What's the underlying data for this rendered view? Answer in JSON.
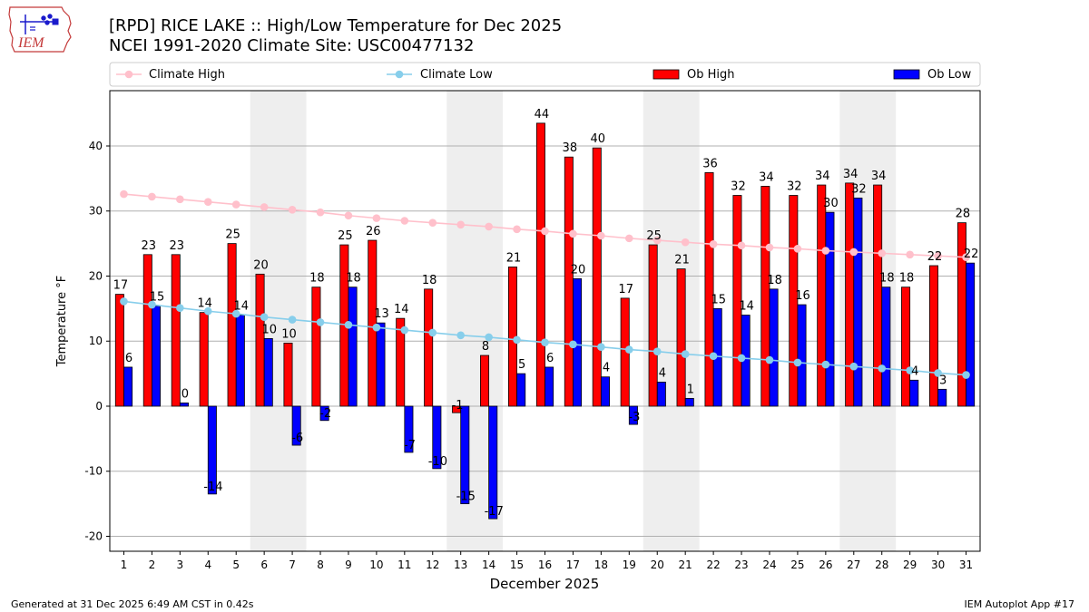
{
  "header": {
    "title_line1": "[RPD] RICE LAKE :: High/Low Temperature for Dec 2025",
    "title_line2": "NCEI 1991-2020 Climate Site: USC00477132",
    "logo_text": "IEM"
  },
  "footer": {
    "left": "Generated at 31 Dec 2025 6:49 AM CST in 0.42s",
    "right": "IEM Autoplot App #17"
  },
  "colors": {
    "ob_high": "#ff0000",
    "ob_low": "#0000ff",
    "climate_high": "#ffc0cb",
    "climate_low": "#87ceeb",
    "weekend_shade": "#eeeeee",
    "grid": "#b0b0b0"
  },
  "chart_data": {
    "type": "bar",
    "xlabel": "December 2025",
    "ylabel": "Temperature °F",
    "ylim": [
      -22.3,
      48.5
    ],
    "yticks": [
      -20,
      -10,
      0,
      10,
      20,
      30,
      40
    ],
    "grid": "horizontal",
    "legend_position": "top",
    "categories": [
      "1",
      "2",
      "3",
      "4",
      "5",
      "6",
      "7",
      "8",
      "9",
      "10",
      "11",
      "12",
      "13",
      "14",
      "15",
      "16",
      "17",
      "18",
      "19",
      "20",
      "21",
      "22",
      "23",
      "24",
      "25",
      "26",
      "27",
      "28",
      "29",
      "30",
      "31"
    ],
    "shaded_days": [
      [
        6,
        7
      ],
      [
        13,
        14
      ],
      [
        20,
        21
      ],
      [
        27,
        28
      ]
    ],
    "series": [
      {
        "name": "Ob High",
        "kind": "bar",
        "values": [
          17,
          23,
          23,
          14,
          25,
          20,
          10,
          18,
          25,
          26,
          14,
          18,
          -1,
          8,
          21,
          44,
          38,
          40,
          17,
          25,
          21,
          36,
          32,
          34,
          32,
          34,
          34,
          34,
          18,
          22,
          28
        ],
        "heights": [
          17.2,
          23.3,
          23.3,
          14.4,
          25.0,
          20.3,
          9.7,
          18.3,
          24.8,
          25.5,
          13.5,
          18.0,
          -1.0,
          7.8,
          21.4,
          43.5,
          38.3,
          39.7,
          16.6,
          24.8,
          21.1,
          35.9,
          32.4,
          33.8,
          32.4,
          34.0,
          34.3,
          34.0,
          18.3,
          21.6,
          28.2
        ],
        "labels": [
          "17",
          "23",
          "23",
          "14",
          "25",
          "20",
          "10",
          "18",
          "25",
          "26",
          "14",
          "18",
          "-1",
          "8",
          "21",
          "44",
          "38",
          "40",
          "17",
          "25",
          "21",
          "36",
          "32",
          "34",
          "32",
          "34",
          "34",
          "34",
          "18",
          "22",
          "28"
        ]
      },
      {
        "name": "Ob Low",
        "kind": "bar",
        "values": [
          6,
          15,
          0,
          -14,
          14,
          10,
          -6,
          -2,
          18,
          13,
          -7,
          -10,
          -15,
          -17,
          5,
          6,
          20,
          4,
          -3,
          4,
          1,
          15,
          14,
          18,
          16,
          30,
          32,
          18,
          4,
          3,
          22
        ],
        "heights": [
          6.0,
          15.4,
          0.5,
          -13.5,
          14.0,
          10.4,
          -6.0,
          -2.2,
          18.3,
          12.8,
          -7.1,
          -9.6,
          -15.0,
          -17.3,
          5.0,
          6.0,
          19.6,
          4.5,
          -2.8,
          3.7,
          1.2,
          15.0,
          14.0,
          18.0,
          15.6,
          29.8,
          32.0,
          18.3,
          4.0,
          2.6,
          22.0
        ],
        "labels": [
          "6",
          "15",
          "0",
          "-14",
          "14",
          "10",
          "-6",
          "-2",
          "18",
          "13",
          "-7",
          "-10",
          "-15",
          "-17",
          "5",
          "6",
          "20",
          "4",
          "-3",
          "4",
          "1",
          "15",
          "14",
          "18",
          "16",
          "30",
          "32",
          "18",
          "4",
          "3",
          "22"
        ]
      },
      {
        "name": "Climate High",
        "kind": "line",
        "values": [
          32.6,
          32.2,
          31.8,
          31.4,
          31.0,
          30.6,
          30.2,
          29.8,
          29.3,
          28.9,
          28.5,
          28.2,
          27.9,
          27.6,
          27.2,
          26.9,
          26.5,
          26.2,
          25.8,
          25.5,
          25.2,
          24.9,
          24.7,
          24.4,
          24.2,
          23.9,
          23.7,
          23.5,
          23.3,
          23.1,
          22.9
        ]
      },
      {
        "name": "Climate Low",
        "kind": "line",
        "values": [
          16.1,
          15.6,
          15.1,
          14.6,
          14.2,
          13.7,
          13.3,
          12.9,
          12.5,
          12.1,
          11.7,
          11.3,
          10.9,
          10.6,
          10.2,
          9.8,
          9.5,
          9.1,
          8.7,
          8.4,
          8.0,
          7.7,
          7.4,
          7.1,
          6.7,
          6.4,
          6.1,
          5.8,
          5.5,
          5.1,
          4.8
        ]
      }
    ],
    "legend": [
      "Climate High",
      "Climate Low",
      "Ob High",
      "Ob Low"
    ]
  }
}
